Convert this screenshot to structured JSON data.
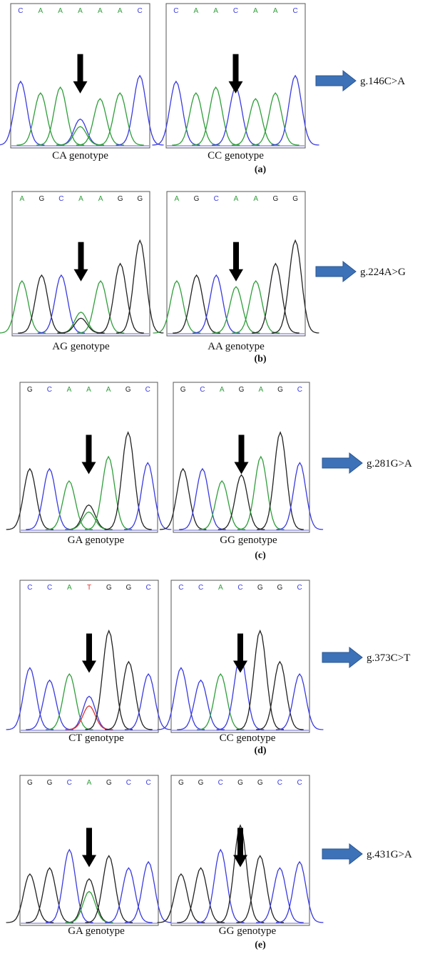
{
  "panels": [
    {
      "label": "(a)",
      "mutation": "g.146C>A",
      "left": {
        "bases": [
          "C",
          "A",
          "A",
          "A",
          "A",
          "A",
          "C"
        ],
        "genotype": "CA genotype"
      },
      "right": {
        "bases": [
          "C",
          "A",
          "A",
          "C",
          "A",
          "A",
          "C"
        ],
        "genotype": "CC genotype"
      }
    },
    {
      "label": "(b)",
      "mutation": "g.224A>G",
      "left": {
        "bases": [
          "A",
          "G",
          "C",
          "A",
          "A",
          "G",
          "G"
        ],
        "genotype": "AG genotype"
      },
      "right": {
        "bases": [
          "A",
          "G",
          "C",
          "A",
          "A",
          "G",
          "G"
        ],
        "genotype": "AA genotype"
      }
    },
    {
      "label": "(c)",
      "mutation": "g.281G>A",
      "left": {
        "bases": [
          "G",
          "C",
          "A",
          "A",
          "A",
          "G",
          "C"
        ],
        "genotype": "GA genotype"
      },
      "right": {
        "bases": [
          "G",
          "C",
          "A",
          "G",
          "A",
          "G",
          "C"
        ],
        "genotype": "GG genotype"
      }
    },
    {
      "label": "(d)",
      "mutation": "g.373C>T",
      "left": {
        "bases": [
          "C",
          "C",
          "A",
          "T",
          "G",
          "G",
          "C"
        ],
        "genotype": "CT genotype"
      },
      "right": {
        "bases": [
          "C",
          "C",
          "A",
          "C",
          "G",
          "G",
          "C"
        ],
        "genotype": "CC genotype"
      }
    },
    {
      "label": "(e)",
      "mutation": "g.431G>A",
      "left": {
        "bases": [
          "G",
          "G",
          "C",
          "A",
          "G",
          "C",
          "C"
        ],
        "genotype": "GA genotype"
      },
      "right": {
        "bases": [
          "G",
          "G",
          "C",
          "G",
          "G",
          "C",
          "C"
        ],
        "genotype": "GG genotype"
      }
    }
  ]
}
